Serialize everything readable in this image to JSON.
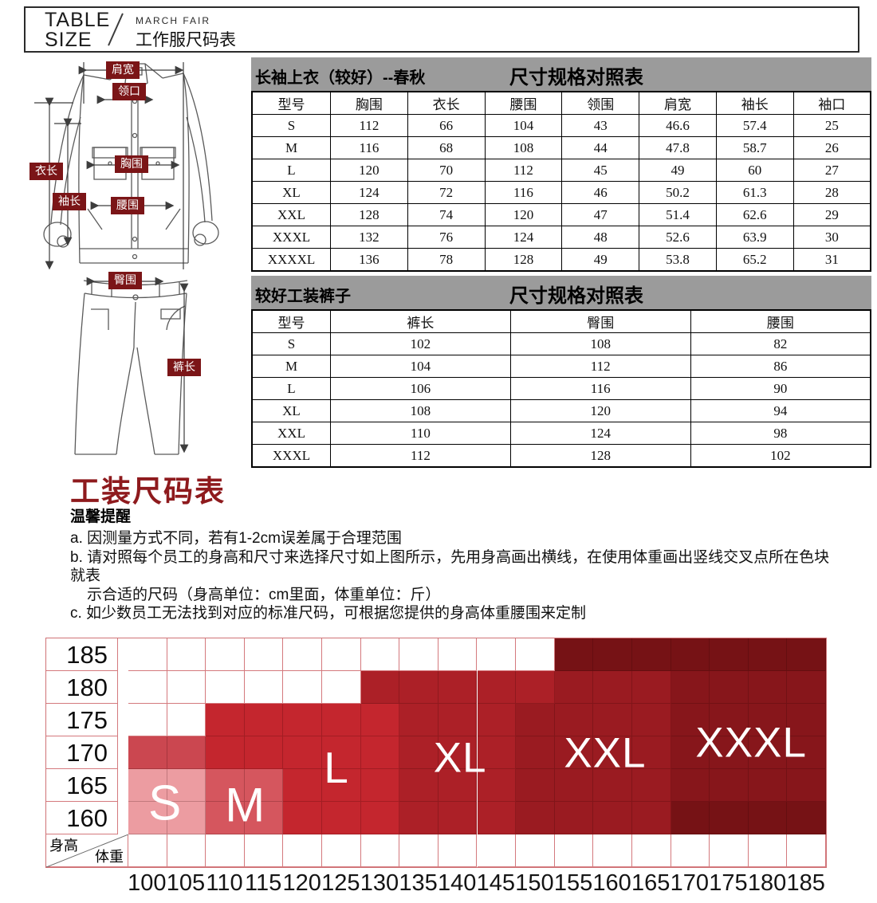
{
  "header": {
    "line1": "TABLE",
    "line2": "SIZE",
    "tag": "MARCH FAIR",
    "title": "工作服尺码表"
  },
  "diagram": {
    "labels": {
      "shoulder_width": "肩宽",
      "collar": "领口",
      "garment_length": "衣长",
      "sleeve_length": "袖长",
      "chest": "胸围",
      "waist": "腰围",
      "hip": "臀围",
      "pants_length": "裤长"
    },
    "label_bg": "#7B1517"
  },
  "tables": [
    {
      "title_left": "长袖上衣（较好）--春秋",
      "title_center": "尺寸规格对照表",
      "columns": [
        "型号",
        "胸围",
        "衣长",
        "腰围",
        "领围",
        "肩宽",
        "袖长",
        "袖口"
      ],
      "rows": [
        [
          "S",
          "112",
          "66",
          "104",
          "43",
          "46.6",
          "57.4",
          "25"
        ],
        [
          "M",
          "116",
          "68",
          "108",
          "44",
          "47.8",
          "58.7",
          "26"
        ],
        [
          "L",
          "120",
          "70",
          "112",
          "45",
          "49",
          "60",
          "27"
        ],
        [
          "XL",
          "124",
          "72",
          "116",
          "46",
          "50.2",
          "61.3",
          "28"
        ],
        [
          "XXL",
          "128",
          "74",
          "120",
          "47",
          "51.4",
          "62.6",
          "29"
        ],
        [
          "XXXL",
          "132",
          "76",
          "124",
          "48",
          "52.6",
          "63.9",
          "30"
        ],
        [
          "XXXXL",
          "136",
          "78",
          "128",
          "49",
          "53.8",
          "65.2",
          "31"
        ]
      ]
    },
    {
      "title_left": "较好工装裤子",
      "title_center": "尺寸规格对照表",
      "columns": [
        "型号",
        "裤长",
        "臀围",
        "腰围"
      ],
      "rows": [
        [
          "S",
          "102",
          "108",
          "82"
        ],
        [
          "M",
          "104",
          "112",
          "86"
        ],
        [
          "L",
          "106",
          "116",
          "90"
        ],
        [
          "XL",
          "108",
          "120",
          "94"
        ],
        [
          "XXL",
          "110",
          "124",
          "98"
        ],
        [
          "XXXL",
          "112",
          "128",
          "102"
        ]
      ]
    }
  ],
  "section_title": "工装尺码表",
  "notes": {
    "heading": "温馨提醒",
    "lines": [
      {
        "text": "a. 因测量方式不同，若有1-2cm误差属于合理范围",
        "indent": false
      },
      {
        "text": "b. 请对照每个员工的身高和尺寸来选择尺寸如上图所示，先用身高画出横线，在使用体重画出竖线交叉点所在色块就表",
        "indent": false
      },
      {
        "text": "示合适的尺码（身高单位：cm里面，体重单位：斤）",
        "indent": true
      },
      {
        "text": "c. 如少数员工无法找到对应的标准尺码，可根据您提供的身高体重腰围来定制",
        "indent": false
      }
    ]
  },
  "chart_data": {
    "type": "heatmap",
    "x_axis_title": "体重",
    "y_axis_title": "身高",
    "x_ticks": [
      "100",
      "105",
      "110",
      "115",
      "120",
      "125",
      "130",
      "135",
      "140",
      "145",
      "150",
      "155",
      "160",
      "165",
      "170",
      "175",
      "180",
      "185"
    ],
    "y_ticks": [
      "185",
      "180",
      "175",
      "170",
      "165",
      "160"
    ],
    "grid_line_color": "#D4797D",
    "palette": [
      "#FFFFFF",
      "#EC9CA1",
      "#D5565E",
      "#CB4750",
      "#C4262E",
      "#AC2027",
      "#9A1B21",
      "#87161B",
      "#761215"
    ],
    "sizes_legend": [
      {
        "label": "S",
        "color": "#EC9CA1"
      },
      {
        "label": "M",
        "color": "#D5565E"
      },
      {
        "label": "L",
        "color": "#C4262E"
      },
      {
        "label": "XL",
        "color": "#AC2027"
      },
      {
        "label": "XXL",
        "color": "#9A1B21"
      },
      {
        "label": "XXXL",
        "color": "#87161B"
      }
    ],
    "cells": [
      [
        0,
        0,
        0,
        0,
        0,
        0,
        0,
        0,
        0,
        0,
        0,
        8,
        8,
        8,
        8,
        8,
        8,
        8
      ],
      [
        0,
        0,
        0,
        0,
        0,
        0,
        5,
        5,
        5,
        5,
        5,
        6,
        6,
        6,
        7,
        7,
        7,
        7
      ],
      [
        0,
        0,
        4,
        4,
        4,
        4,
        4,
        5,
        5,
        5,
        6,
        6,
        6,
        6,
        7,
        7,
        7,
        7
      ],
      [
        3,
        3,
        4,
        4,
        4,
        4,
        4,
        5,
        5,
        5,
        6,
        6,
        6,
        6,
        7,
        7,
        7,
        7
      ],
      [
        1,
        1,
        2,
        2,
        4,
        4,
        4,
        5,
        5,
        5,
        6,
        6,
        6,
        6,
        7,
        7,
        7,
        7
      ],
      [
        1,
        1,
        2,
        2,
        4,
        4,
        4,
        5,
        5,
        5,
        6,
        6,
        6,
        6,
        8,
        8,
        8,
        8
      ]
    ],
    "regions": [
      {
        "label": "S",
        "col": 0.95,
        "row": 5.05,
        "size": 62
      },
      {
        "label": "M",
        "col": 3.02,
        "row": 5.1,
        "size": 60
      },
      {
        "label": "L",
        "col": 5.37,
        "row": 3.96,
        "size": 55
      },
      {
        "label": "XL",
        "col": 8.56,
        "row": 3.67,
        "size": 53
      },
      {
        "label": "XXL",
        "col": 12.3,
        "row": 3.52,
        "size": 53
      },
      {
        "label": "XXXL",
        "col": 16.07,
        "row": 3.2,
        "size": 53
      }
    ]
  }
}
